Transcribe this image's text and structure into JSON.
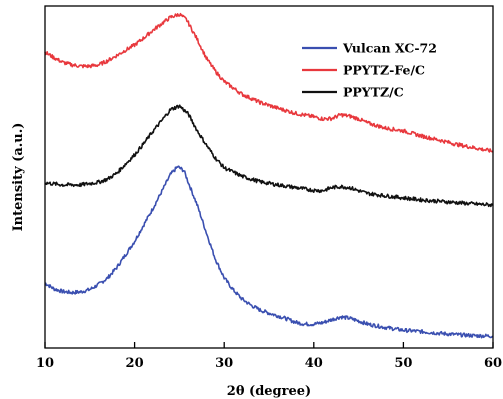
{
  "chart_data": {
    "type": "line",
    "xlabel": "2θ (degree)",
    "ylabel": "Intensity (a.u.)",
    "xlim": [
      10,
      60
    ],
    "ylim": [
      0,
      100
    ],
    "x_ticks": [
      "10",
      "20",
      "30",
      "40",
      "50",
      "60"
    ],
    "y_ticks_shown": false,
    "grid": false,
    "legend_position": "top-right",
    "series": [
      {
        "name": "Vulcan XC-72",
        "color": "#3a4fb0",
        "x": [
          10,
          11,
          12,
          13,
          14,
          15,
          16,
          17,
          18,
          19,
          20,
          21,
          22,
          23,
          24,
          24.8,
          25.5,
          26,
          27,
          28,
          29,
          30,
          31,
          32,
          33,
          34,
          35,
          36,
          37,
          38,
          39,
          40,
          41,
          42,
          43,
          44,
          45,
          46,
          47,
          48,
          49,
          50,
          52,
          54,
          56,
          58,
          60
        ],
        "y": [
          19.0,
          17.3,
          16.5,
          16.2,
          16.4,
          17.1,
          18.6,
          20.5,
          23.5,
          27.3,
          31.2,
          35.9,
          40.6,
          45.6,
          50.7,
          53.0,
          51.9,
          48.4,
          41.7,
          33.8,
          26.1,
          20.5,
          17.0,
          14.3,
          12.5,
          11.1,
          10.2,
          9.4,
          8.5,
          7.5,
          7.0,
          7.0,
          7.4,
          8.3,
          9.1,
          8.7,
          7.9,
          7.0,
          6.5,
          6.0,
          5.6,
          5.2,
          4.8,
          4.3,
          3.9,
          3.6,
          3.5
        ]
      },
      {
        "name": "PPYTZ-Fe/C",
        "color": "#e8383d",
        "x": [
          10,
          11,
          12,
          13,
          14,
          15,
          16,
          17,
          18,
          19,
          20,
          21,
          22,
          23,
          24,
          25,
          25.8,
          27,
          28,
          29,
          30,
          32,
          34,
          36,
          38,
          40,
          41,
          42,
          43,
          44,
          45,
          46,
          48,
          50,
          52,
          54,
          56,
          58,
          60
        ],
        "y": [
          86.5,
          84.9,
          83.5,
          82.8,
          82.4,
          82.4,
          82.8,
          84.0,
          85.5,
          87.1,
          88.6,
          90.6,
          92.8,
          94.8,
          96.7,
          97.6,
          96.0,
          90.2,
          84.8,
          81.0,
          77.9,
          74.2,
          71.8,
          70.1,
          68.6,
          67.6,
          67.0,
          67.1,
          68.2,
          67.8,
          67.0,
          65.8,
          64.3,
          63.5,
          62.0,
          60.8,
          59.5,
          58.5,
          57.5
        ]
      },
      {
        "name": "PPYTZ/C",
        "color": "#111111",
        "x": [
          10,
          12,
          14,
          16,
          17,
          18,
          19,
          20,
          21,
          22,
          23,
          24,
          25,
          26,
          27,
          28,
          29,
          30,
          32,
          34,
          36,
          38,
          40,
          41,
          42,
          43,
          44,
          45,
          46,
          48,
          50,
          52,
          54,
          56,
          58,
          60
        ],
        "y": [
          48.3,
          47.7,
          47.7,
          48.5,
          49.4,
          51.1,
          53.8,
          56.5,
          59.7,
          63.2,
          66.4,
          69.7,
          70.8,
          68.4,
          63.5,
          59.4,
          55.6,
          52.7,
          50.2,
          48.6,
          47.7,
          46.9,
          46.1,
          46.0,
          46.9,
          47.2,
          46.9,
          46.0,
          45.2,
          44.5,
          43.9,
          43.3,
          42.9,
          42.5,
          42.1,
          41.8
        ]
      }
    ]
  }
}
